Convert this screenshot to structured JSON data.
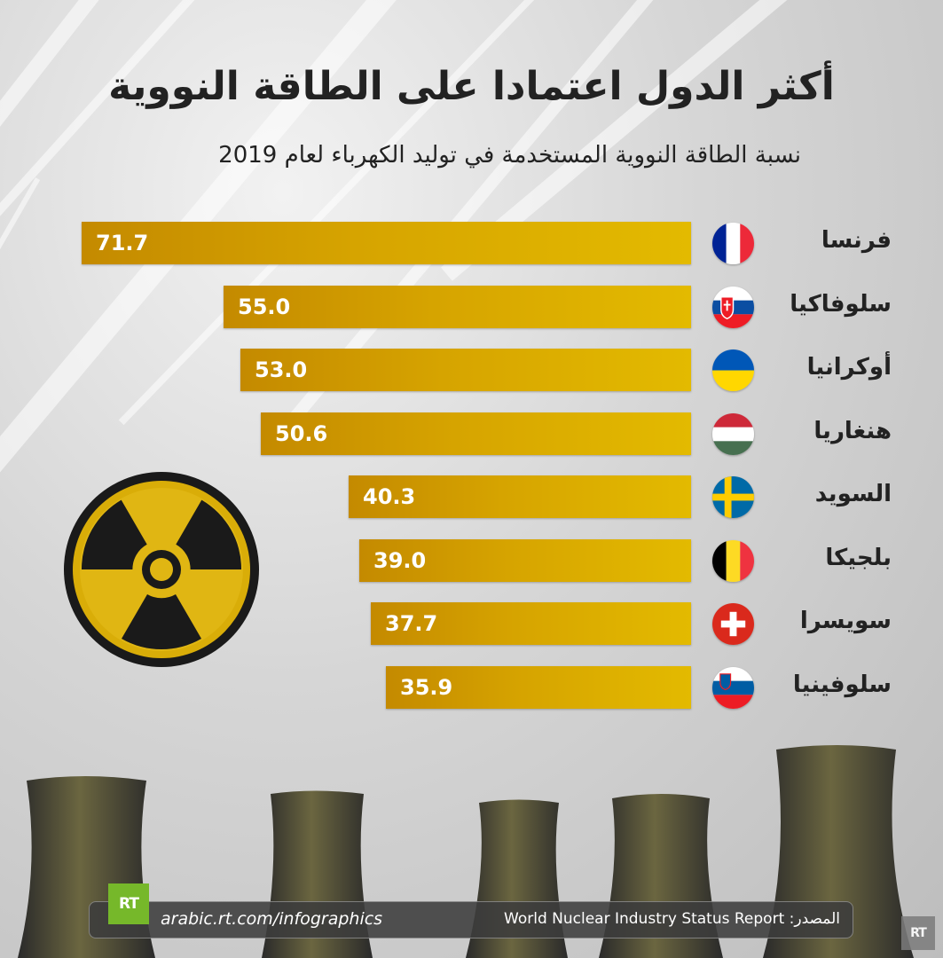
{
  "title": "أكثر الدول اعتمادا على الطاقة النووية",
  "subtitle": "نسبة الطاقة النووية المستخدمة في توليد الكهرباء لعام 2019",
  "colors": {
    "bar_start": "#c48a00",
    "bar_end": "#e3ba00",
    "accent": "#76b82a"
  },
  "chart_data": {
    "type": "bar",
    "orientation": "horizontal",
    "categories": [
      "فرنسا",
      "سلوفاكيا",
      "أوكرانيا",
      "هنغاريا",
      "السويد",
      "بلجيكا",
      "سويسرا",
      "سلوفينيا"
    ],
    "values": [
      71.7,
      55.0,
      53.0,
      50.6,
      40.3,
      39.0,
      37.7,
      35.9
    ],
    "value_labels": [
      "71.7",
      "55.0",
      "53.0",
      "50.6",
      "40.3",
      "39.0",
      "37.7",
      "35.9"
    ],
    "flags": [
      "france",
      "slovakia",
      "ukraine",
      "hungary",
      "sweden",
      "belgium",
      "switzerland",
      "slovenia"
    ],
    "title": "أكثر الدول اعتمادا على الطاقة النووية",
    "subtitle": "نسبة الطاقة النووية المستخدمة في توليد الكهرباء لعام 2019",
    "grid": false,
    "legend": "none"
  },
  "footer": {
    "url": "arabic.rt.com/infographics",
    "source": "المصدر: World Nuclear Industry Status Report",
    "logo": "RT"
  },
  "icons": {
    "radiation": "radiation-icon",
    "towers": "cooling-towers-illustration"
  }
}
